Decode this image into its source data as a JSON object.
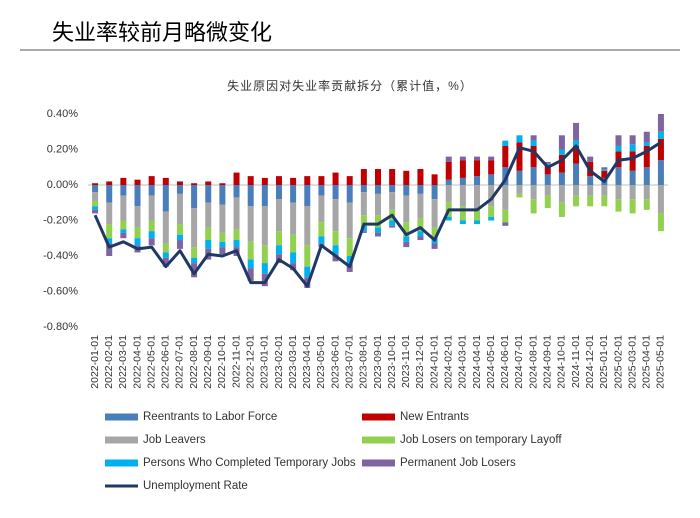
{
  "header": {
    "title": "失业率较前月略微变化"
  },
  "chart_data": {
    "type": "bar",
    "title": "失业原因对失业率贡献拆分（累计值，%）",
    "categories": [
      "2022-01-01",
      "2022-02-01",
      "2022-03-01",
      "2022-04-01",
      "2022-05-01",
      "2022-06-01",
      "2022-07-01",
      "2022-08-01",
      "2022-09-01",
      "2022-10-01",
      "2022-11-01",
      "2022-12-01",
      "2023-01-01",
      "2023-02-01",
      "2023-03-01",
      "2023-04-01",
      "2023-05-01",
      "2023-06-01",
      "2023-07-01",
      "2023-08-01",
      "2023-09-01",
      "2023-10-01",
      "2023-11-01",
      "2023-12-01",
      "2024-01-01",
      "2024-02-01",
      "2024-03-01",
      "2024-04-01",
      "2024-05-01",
      "2024-06-01",
      "2024-07-01",
      "2024-08-01",
      "2024-09-01",
      "2024-10-01",
      "2024-11-01",
      "2024-12-01",
      "2025-01-01",
      "2025-02-01",
      "2025-03-01",
      "2025-04-01",
      "2025-05-01"
    ],
    "stacked": true,
    "series": [
      {
        "name": "Reentrants to Labor Force",
        "color": "#4a7ebb",
        "values": [
          -0.04,
          -0.1,
          -0.06,
          -0.12,
          -0.06,
          -0.15,
          -0.05,
          -0.13,
          -0.1,
          -0.11,
          -0.07,
          -0.12,
          -0.12,
          -0.08,
          -0.1,
          -0.12,
          -0.06,
          -0.08,
          -0.1,
          -0.04,
          -0.05,
          -0.04,
          -0.06,
          -0.05,
          -0.08,
          0.03,
          0.04,
          0.05,
          0.06,
          0.1,
          0.08,
          0.1,
          0.06,
          0.07,
          0.12,
          0.05,
          0.04,
          0.1,
          0.08,
          0.1,
          0.14
        ]
      },
      {
        "name": "New Entrants",
        "color": "#c00000",
        "values": [
          0.01,
          0.02,
          0.04,
          0.03,
          0.05,
          0.04,
          0.02,
          0.01,
          0.02,
          0.01,
          0.07,
          0.05,
          0.04,
          0.05,
          0.04,
          0.05,
          0.05,
          0.07,
          0.05,
          0.09,
          0.09,
          0.09,
          0.08,
          0.09,
          0.06,
          0.1,
          0.1,
          0.09,
          0.08,
          0.12,
          0.16,
          0.12,
          0.05,
          0.1,
          0.1,
          0.08,
          0.04,
          0.09,
          0.11,
          0.12,
          0.12
        ]
      },
      {
        "name": "Job Leavers",
        "color": "#a6a6a6",
        "values": [
          -0.05,
          -0.12,
          -0.14,
          -0.12,
          -0.14,
          -0.18,
          -0.17,
          -0.22,
          -0.14,
          -0.16,
          -0.18,
          -0.2,
          -0.22,
          -0.18,
          -0.18,
          -0.22,
          -0.15,
          -0.18,
          -0.2,
          -0.13,
          -0.12,
          -0.1,
          -0.15,
          -0.14,
          -0.16,
          -0.1,
          -0.12,
          -0.14,
          -0.12,
          -0.14,
          -0.05,
          -0.08,
          -0.06,
          -0.1,
          -0.06,
          -0.06,
          -0.06,
          -0.08,
          -0.08,
          -0.08,
          -0.16
        ]
      },
      {
        "name": "Job Losers on temporary Layoff",
        "color": "#92d050",
        "values": [
          -0.03,
          -0.08,
          -0.05,
          -0.06,
          -0.06,
          -0.05,
          -0.06,
          -0.06,
          -0.07,
          -0.05,
          -0.06,
          -0.1,
          -0.1,
          -0.08,
          -0.1,
          -0.12,
          -0.08,
          -0.08,
          -0.1,
          -0.06,
          -0.07,
          -0.06,
          -0.08,
          -0.07,
          -0.06,
          -0.08,
          -0.08,
          -0.06,
          -0.06,
          -0.07,
          -0.02,
          -0.08,
          -0.07,
          -0.08,
          -0.06,
          -0.06,
          -0.06,
          -0.07,
          -0.08,
          -0.06,
          -0.1
        ]
      },
      {
        "name": "Persons Who Completed Temporary Jobs",
        "color": "#00b0f0",
        "values": [
          -0.02,
          -0.03,
          -0.02,
          -0.04,
          -0.04,
          -0.03,
          -0.03,
          -0.03,
          -0.05,
          -0.03,
          -0.04,
          -0.05,
          -0.06,
          -0.05,
          -0.06,
          -0.06,
          -0.04,
          -0.05,
          -0.05,
          -0.03,
          -0.03,
          -0.03,
          -0.03,
          -0.03,
          -0.03,
          -0.02,
          -0.02,
          -0.02,
          -0.02,
          0.03,
          0.04,
          0.03,
          0.01,
          0.03,
          0.03,
          0.0,
          0.01,
          0.03,
          0.04,
          0.02,
          0.04
        ]
      },
      {
        "name": "Permanent Job Losers",
        "color": "#8064a2",
        "values": [
          -0.02,
          -0.07,
          -0.03,
          -0.04,
          -0.04,
          -0.05,
          -0.05,
          -0.08,
          -0.06,
          -0.04,
          -0.05,
          -0.07,
          -0.07,
          -0.05,
          -0.04,
          -0.06,
          -0.02,
          -0.04,
          -0.04,
          -0.01,
          -0.02,
          -0.01,
          -0.03,
          -0.02,
          -0.03,
          0.03,
          0.02,
          0.02,
          0.02,
          -0.02,
          0.0,
          0.03,
          0.01,
          0.08,
          0.1,
          0.03,
          0.01,
          0.06,
          0.05,
          0.06,
          0.1
        ]
      },
      {
        "name": "Unemployment Rate",
        "type": "line",
        "color": "#1f3864",
        "values": [
          -0.17,
          -0.35,
          -0.32,
          -0.36,
          -0.35,
          -0.46,
          -0.37,
          -0.5,
          -0.39,
          -0.4,
          -0.37,
          -0.55,
          -0.55,
          -0.42,
          -0.47,
          -0.57,
          -0.34,
          -0.4,
          -0.46,
          -0.22,
          -0.22,
          -0.17,
          -0.28,
          -0.24,
          -0.31,
          -0.14,
          -0.14,
          -0.14,
          -0.08,
          0.03,
          0.21,
          0.19,
          0.1,
          0.14,
          0.22,
          0.08,
          0.02,
          0.14,
          0.15,
          0.19,
          0.24
        ]
      }
    ],
    "ylim": [
      -0.8,
      0.4
    ],
    "yticks": [
      {
        "value": -0.8,
        "label": "-0.80%"
      },
      {
        "value": -0.6,
        "label": "-0.60%"
      },
      {
        "value": -0.4,
        "label": "-0.40%"
      },
      {
        "value": -0.2,
        "label": "-0.20%"
      },
      {
        "value": 0,
        "label": "0.00%"
      },
      {
        "value": 0.2,
        "label": "0.20%"
      },
      {
        "value": 0.4,
        "label": "0.40%"
      }
    ],
    "grid": false,
    "legend": "bottom"
  }
}
